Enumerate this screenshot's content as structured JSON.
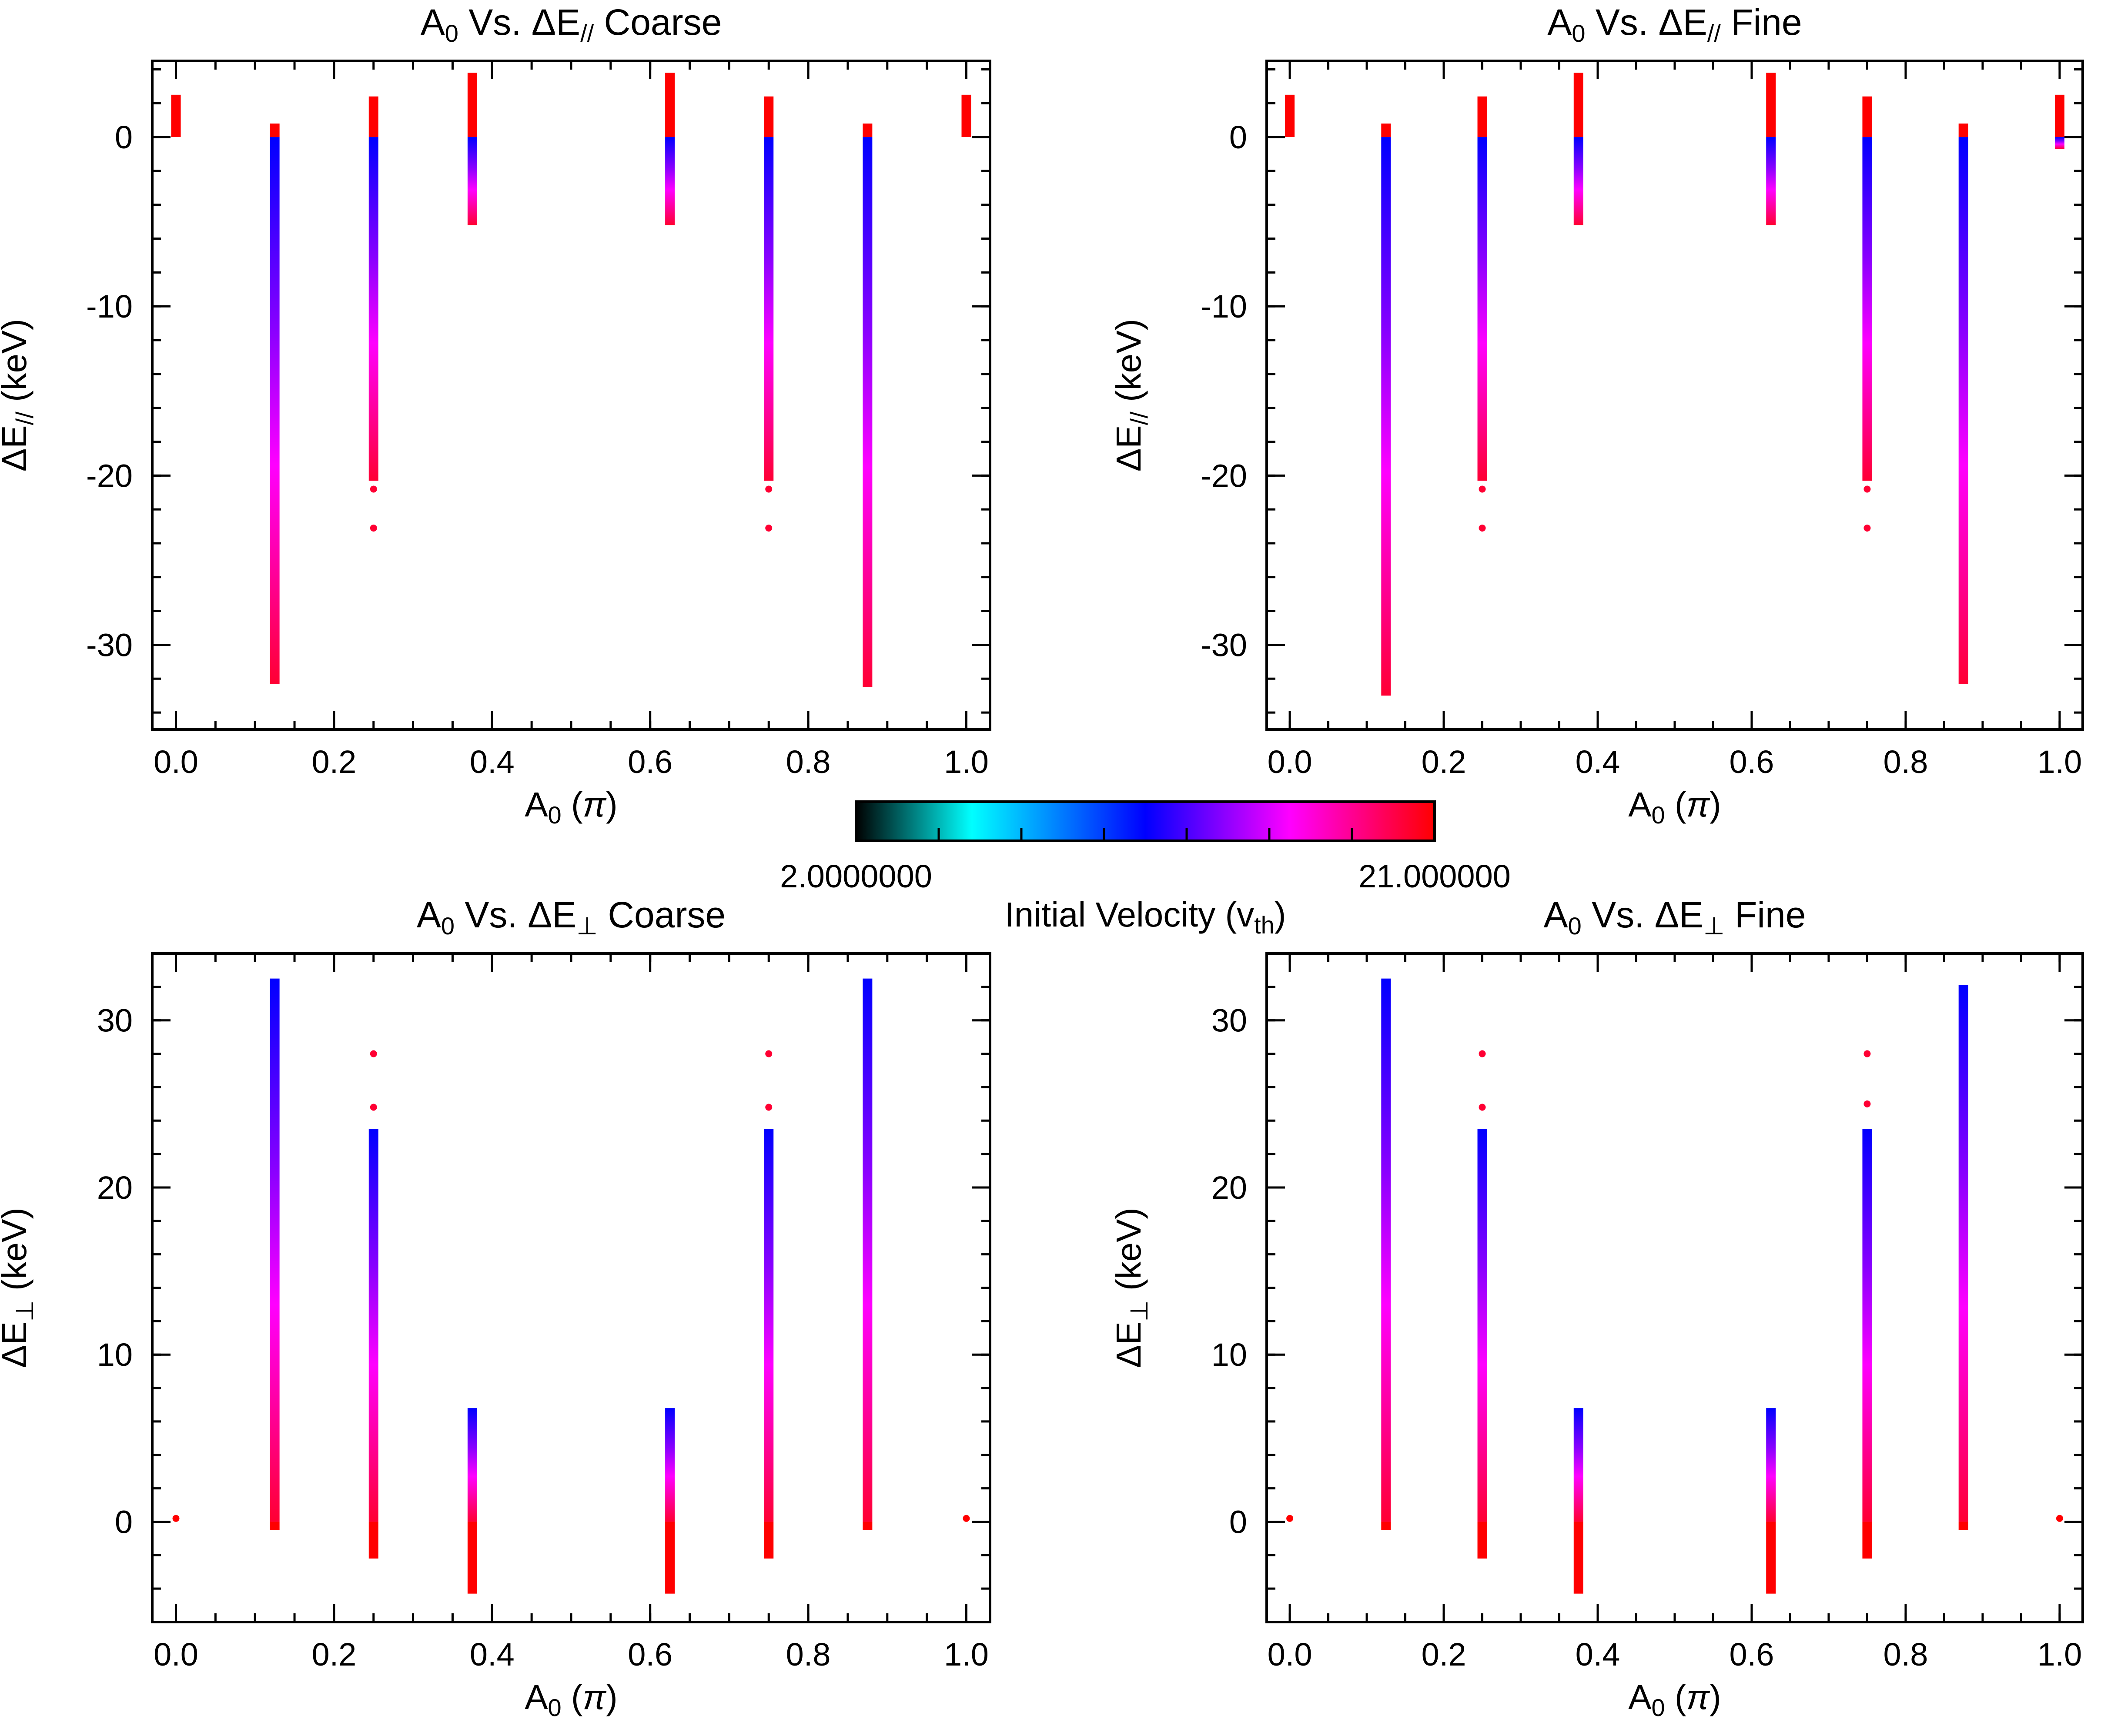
{
  "colorbar": {
    "min_label": "2.0000000",
    "max_label": "21.000000",
    "label_main": "Initial Velocity (v",
    "label_sub": "th",
    "label_close": ")",
    "min": 2.0,
    "max": 21.0,
    "stops": [
      "#000000",
      "#00ffff",
      "#0000ff",
      "#ff00ff",
      "#ff0000"
    ]
  },
  "chart_data": [
    {
      "id": "par_coarse",
      "type": "scatter",
      "title_prefix": "A",
      "title_sub": "0",
      "title_mid": " Vs. ΔE",
      "title_sub2": "//",
      "title_suffix": "  Coarse",
      "xlabel_main": "A",
      "xlabel_sub": "0",
      "xlabel_rest": " (",
      "xlabel_pi": "π",
      "xlabel_close": ")",
      "ylabel_main": "ΔE",
      "ylabel_sub": "//",
      "ylabel_rest": " (keV)",
      "xlim": [
        -0.03,
        1.03
      ],
      "ylim": [
        -35,
        4.5
      ],
      "xticks": [
        0.0,
        0.2,
        0.4,
        0.6,
        0.8,
        1.0
      ],
      "xtick_labels": [
        "0.0",
        "0.2",
        "0.4",
        "0.6",
        "0.8",
        "1.0"
      ],
      "yticks": [
        0,
        -10,
        -20,
        -30
      ],
      "ytick_labels": [
        "0",
        "-10",
        "-20",
        "-30"
      ],
      "xminor": 0.05,
      "yminor": 2,
      "columns": [
        {
          "x": 0.0,
          "ymin": 0.0,
          "ymax": 2.5,
          "blue_top": 0.0,
          "outliers": []
        },
        {
          "x": 0.125,
          "ymin": -32.3,
          "ymax": 0.8,
          "blue_top": 0.0,
          "outliers": []
        },
        {
          "x": 0.25,
          "ymin": -20.3,
          "ymax": 2.4,
          "blue_top": 0.0,
          "outliers": [
            -20.8,
            -23.1
          ]
        },
        {
          "x": 0.375,
          "ymin": -5.2,
          "ymax": 3.8,
          "blue_top": 0.0,
          "outliers": []
        },
        {
          "x": 0.625,
          "ymin": -5.2,
          "ymax": 3.8,
          "blue_top": 0.0,
          "outliers": []
        },
        {
          "x": 0.75,
          "ymin": -20.3,
          "ymax": 2.4,
          "blue_top": 0.0,
          "outliers": [
            -20.8,
            -23.1
          ]
        },
        {
          "x": 0.875,
          "ymin": -32.5,
          "ymax": 0.8,
          "blue_top": 0.0,
          "outliers": []
        },
        {
          "x": 1.0,
          "ymin": 0.0,
          "ymax": 2.5,
          "blue_top": 0.0,
          "outliers": []
        }
      ]
    },
    {
      "id": "par_fine",
      "type": "scatter",
      "title_prefix": "A",
      "title_sub": "0",
      "title_mid": " Vs. ΔE",
      "title_sub2": "//",
      "title_suffix": "  Fine",
      "xlabel_main": "A",
      "xlabel_sub": "0",
      "xlabel_rest": " (",
      "xlabel_pi": "π",
      "xlabel_close": ")",
      "ylabel_main": "ΔE",
      "ylabel_sub": "//",
      "ylabel_rest": " (keV)",
      "xlim": [
        -0.03,
        1.03
      ],
      "ylim": [
        -35,
        4.5
      ],
      "xticks": [
        0.0,
        0.2,
        0.4,
        0.6,
        0.8,
        1.0
      ],
      "xtick_labels": [
        "0.0",
        "0.2",
        "0.4",
        "0.6",
        "0.8",
        "1.0"
      ],
      "yticks": [
        0,
        -10,
        -20,
        -30
      ],
      "ytick_labels": [
        "0",
        "-10",
        "-20",
        "-30"
      ],
      "xminor": 0.05,
      "yminor": 2,
      "columns": [
        {
          "x": 0.0,
          "ymin": 0.0,
          "ymax": 2.5,
          "blue_top": 0.0,
          "outliers": []
        },
        {
          "x": 0.125,
          "ymin": -33.0,
          "ymax": 0.8,
          "blue_top": 0.0,
          "outliers": []
        },
        {
          "x": 0.25,
          "ymin": -20.3,
          "ymax": 2.4,
          "blue_top": 0.0,
          "outliers": [
            -20.8,
            -23.1
          ]
        },
        {
          "x": 0.375,
          "ymin": -5.2,
          "ymax": 3.8,
          "blue_top": 0.0,
          "outliers": []
        },
        {
          "x": 0.625,
          "ymin": -5.2,
          "ymax": 3.8,
          "blue_top": 0.0,
          "outliers": []
        },
        {
          "x": 0.75,
          "ymin": -20.3,
          "ymax": 2.4,
          "blue_top": 0.0,
          "outliers": [
            -20.8,
            -23.1
          ]
        },
        {
          "x": 0.875,
          "ymin": -32.3,
          "ymax": 0.8,
          "blue_top": 0.0,
          "outliers": []
        },
        {
          "x": 1.0,
          "ymin": -0.7,
          "ymax": 2.5,
          "blue_top": 0.0,
          "outliers": []
        }
      ]
    },
    {
      "id": "perp_coarse",
      "type": "scatter",
      "title_prefix": "A",
      "title_sub": "0",
      "title_mid": " Vs. ΔE",
      "title_sub2": "⊥",
      "title_suffix": "  Coarse",
      "xlabel_main": "A",
      "xlabel_sub": "0",
      "xlabel_rest": " (",
      "xlabel_pi": "π",
      "xlabel_close": ")",
      "ylabel_main": "ΔE",
      "ylabel_sub": "⊥",
      "ylabel_rest": " (keV)",
      "xlim": [
        -0.03,
        1.03
      ],
      "ylim": [
        -6,
        34
      ],
      "xticks": [
        0.0,
        0.2,
        0.4,
        0.6,
        0.8,
        1.0
      ],
      "xtick_labels": [
        "0.0",
        "0.2",
        "0.4",
        "0.6",
        "0.8",
        "1.0"
      ],
      "yticks": [
        0,
        10,
        20,
        30
      ],
      "ytick_labels": [
        "0",
        "10",
        "20",
        "30"
      ],
      "xminor": 0.05,
      "yminor": 2,
      "columns": [
        {
          "x": 0.0,
          "ymin": 0.2,
          "ymax": 0.2,
          "blue_top": 0.0,
          "outliers": []
        },
        {
          "x": 0.125,
          "ymin": -0.5,
          "ymax": 32.5,
          "blue_top": 0.0,
          "outliers": []
        },
        {
          "x": 0.25,
          "ymin": -2.2,
          "ymax": 23.5,
          "blue_top": 0.0,
          "outliers": [
            24.8,
            28.0
          ]
        },
        {
          "x": 0.375,
          "ymin": -4.3,
          "ymax": 6.8,
          "blue_top": 0.0,
          "outliers": []
        },
        {
          "x": 0.625,
          "ymin": -4.3,
          "ymax": 6.8,
          "blue_top": 0.0,
          "outliers": []
        },
        {
          "x": 0.75,
          "ymin": -2.2,
          "ymax": 23.5,
          "blue_top": 0.0,
          "outliers": [
            24.8,
            28.0
          ]
        },
        {
          "x": 0.875,
          "ymin": -0.5,
          "ymax": 32.5,
          "blue_top": 0.0,
          "outliers": []
        },
        {
          "x": 1.0,
          "ymin": 0.2,
          "ymax": 0.2,
          "blue_top": 0.0,
          "outliers": []
        }
      ]
    },
    {
      "id": "perp_fine",
      "type": "scatter",
      "title_prefix": "A",
      "title_sub": "0",
      "title_mid": " Vs. ΔE",
      "title_sub2": "⊥",
      "title_suffix": "  Fine",
      "xlabel_main": "A",
      "xlabel_sub": "0",
      "xlabel_rest": " (",
      "xlabel_pi": "π",
      "xlabel_close": ")",
      "ylabel_main": "ΔE",
      "ylabel_sub": "⊥",
      "ylabel_rest": " (keV)",
      "xlim": [
        -0.03,
        1.03
      ],
      "ylim": [
        -6,
        34
      ],
      "xticks": [
        0.0,
        0.2,
        0.4,
        0.6,
        0.8,
        1.0
      ],
      "xtick_labels": [
        "0.0",
        "0.2",
        "0.4",
        "0.6",
        "0.8",
        "1.0"
      ],
      "yticks": [
        0,
        10,
        20,
        30
      ],
      "ytick_labels": [
        "0",
        "10",
        "20",
        "30"
      ],
      "xminor": 0.05,
      "yminor": 2,
      "columns": [
        {
          "x": 0.0,
          "ymin": 0.2,
          "ymax": 0.2,
          "blue_top": 0.0,
          "outliers": []
        },
        {
          "x": 0.125,
          "ymin": -0.5,
          "ymax": 32.5,
          "blue_top": 0.0,
          "outliers": []
        },
        {
          "x": 0.25,
          "ymin": -2.2,
          "ymax": 23.5,
          "blue_top": 0.0,
          "outliers": [
            24.8,
            28.0
          ]
        },
        {
          "x": 0.375,
          "ymin": -4.3,
          "ymax": 6.8,
          "blue_top": 0.0,
          "outliers": []
        },
        {
          "x": 0.625,
          "ymin": -4.3,
          "ymax": 6.8,
          "blue_top": 0.0,
          "outliers": []
        },
        {
          "x": 0.75,
          "ymin": -2.2,
          "ymax": 23.5,
          "blue_top": 0.0,
          "outliers": [
            25.0,
            28.0
          ]
        },
        {
          "x": 0.875,
          "ymin": -0.5,
          "ymax": 32.1,
          "blue_top": 0.0,
          "outliers": []
        },
        {
          "x": 1.0,
          "ymin": 0.2,
          "ymax": 0.2,
          "blue_top": 0.0,
          "outliers": []
        }
      ]
    }
  ]
}
